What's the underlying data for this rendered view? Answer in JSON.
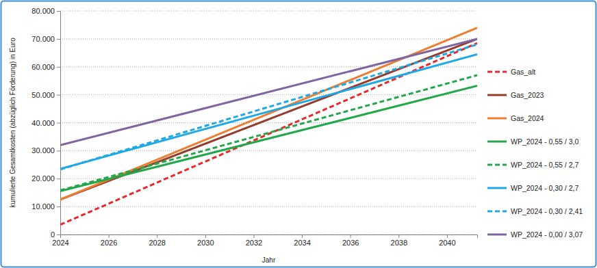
{
  "chart_data": {
    "type": "line",
    "x_label": "Jahr",
    "y_label": "kumulierte Gesamtkosten (abzüglich Förderung) in Euro",
    "x": [
      2024,
      2041.25
    ],
    "xlim": [
      2024,
      2041.25
    ],
    "xticks": [
      2024,
      2026,
      2028,
      2030,
      2032,
      2034,
      2036,
      2038,
      2040
    ],
    "ylim": [
      0,
      80000
    ],
    "yticks": [
      0,
      {
        "value": 10000,
        "label": "10.000"
      },
      {
        "value": 20000,
        "label": "20.000"
      },
      {
        "value": 30000,
        "label": "30.000"
      },
      {
        "value": 40000,
        "label": "40.000"
      },
      {
        "value": 50000,
        "label": "50.000"
      },
      {
        "value": 60000,
        "label": "60.000"
      },
      {
        "value": 70000,
        "label": "70.000"
      },
      {
        "value": 80000,
        "label": "80.000"
      }
    ],
    "grid": true,
    "legend": "right",
    "series": [
      {
        "name": "Gas_alt",
        "color": "#e8282b",
        "line_style": "dashed",
        "values": [
          3500,
          68500
        ]
      },
      {
        "name": "Gas_2023",
        "color": "#963c2c",
        "line_style": "solid",
        "values": [
          12500,
          70000
        ]
      },
      {
        "name": "Gas_2024",
        "color": "#ed7d31",
        "line_style": "solid",
        "values": [
          12500,
          74000
        ]
      },
      {
        "name": "WP_2024 - 0,55 / 3,0",
        "color": "#22a84a",
        "line_style": "solid",
        "values": [
          15500,
          53200
        ]
      },
      {
        "name": "WP_2024 - 0,55 / 2,7",
        "color": "#22a84a",
        "line_style": "dashed",
        "values": [
          15800,
          57000
        ]
      },
      {
        "name": "WP_2024 - 0,30 / 2,7",
        "color": "#1ea9e6",
        "line_style": "solid",
        "values": [
          23500,
          64500
        ]
      },
      {
        "name": "WP_2024 - 0,30 / 2,41",
        "color": "#1ea9e6",
        "line_style": "dashed",
        "values": [
          23300,
          68000
        ]
      },
      {
        "name": "WP_2024 - 0,00 / 3,07",
        "color": "#8064a2",
        "line_style": "solid",
        "values": [
          32000,
          70000
        ]
      }
    ]
  }
}
